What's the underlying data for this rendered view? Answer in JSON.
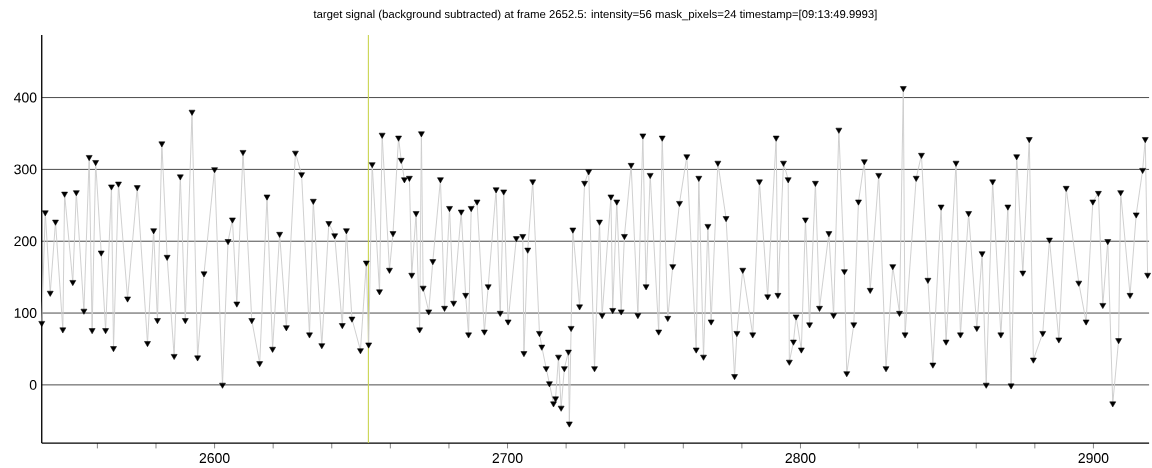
{
  "chart_data": {
    "type": "line",
    "title": "target signal (background subtracted) at frame 2652.5: intensity=56 mask_pixels=24 timestamp=[09:13:49.9993]",
    "xlim": [
      2541,
      2919
    ],
    "ylim": [
      -81,
      487
    ],
    "xticks": [
      {
        "value": 2560,
        "label": null
      },
      {
        "value": 2580,
        "label": null
      },
      2600,
      {
        "value": 2620,
        "label": null
      },
      {
        "value": 2640,
        "label": null
      },
      {
        "value": 2660,
        "label": null
      },
      {
        "value": 2680,
        "label": null
      },
      2700,
      {
        "value": 2720,
        "label": null
      },
      {
        "value": 2740,
        "label": null
      },
      {
        "value": 2760,
        "label": null
      },
      {
        "value": 2780,
        "label": null
      },
      2800,
      {
        "value": 2820,
        "label": null
      },
      {
        "value": 2840,
        "label": null
      },
      {
        "value": 2860,
        "label": null
      },
      {
        "value": 2880,
        "label": null
      },
      2900
    ],
    "yticks": [
      0,
      100,
      200,
      300,
      400
    ],
    "grid": "y",
    "marker": "triangle",
    "ref_lines": [
      {
        "axis": "x",
        "value": 2652.5,
        "color": "#c8d44a"
      }
    ],
    "series": [
      {
        "color": "#000000",
        "x": [
          2541,
          2542.2,
          2543.9,
          2545.7,
          2548.2,
          2548.8,
          2551.6,
          2552.8,
          2555.4,
          2557.2,
          2558.2,
          2559.4,
          2561.3,
          2562.8,
          2564.8,
          2565.5,
          2567.2,
          2570.3,
          2573.6,
          2577.1,
          2579.2,
          2580.5,
          2582.0,
          2583.8,
          2586.2,
          2588.3,
          2590.0,
          2592.3,
          2594.2,
          2596.4,
          2600.0,
          2602.7,
          2604.6,
          2606.1,
          2607.6,
          2609.7,
          2612.7,
          2615.4,
          2617.9,
          2619.8,
          2622.2,
          2624.5,
          2627.6,
          2629.7,
          2632.4,
          2633.7,
          2636.6,
          2639.0,
          2641.0,
          2643.6,
          2645.0,
          2646.9,
          2649.8,
          2651.8,
          2652.6,
          2653.8,
          2656.3,
          2657.2,
          2659.7,
          2660.9,
          2662.8,
          2663.7,
          2664.8,
          2666.5,
          2667.3,
          2668.8,
          2670.0,
          2670.6,
          2671.2,
          2673.1,
          2674.5,
          2677.1,
          2678.5,
          2680.2,
          2681.6,
          2684.2,
          2685.7,
          2686.7,
          2687.6,
          2689.6,
          2692.1,
          2693.4,
          2696.1,
          2697.5,
          2698.7,
          2700.2,
          2703.0,
          2705.2,
          2705.6,
          2706.9,
          2708.6,
          2710.9,
          2711.7,
          2713.2,
          2714.3,
          2715.7,
          2716.4,
          2717.4,
          2718.3,
          2719.4,
          2720.8,
          2721.1,
          2721.7,
          2722.3,
          2724.6,
          2726.3,
          2727.7,
          2729.7,
          2731.4,
          2732.3,
          2735.3,
          2735.9,
          2737.3,
          2738.8,
          2739.9,
          2742.2,
          2744.5,
          2746.2,
          2747.3,
          2748.7,
          2751.6,
          2752.8,
          2754.7,
          2756.4,
          2758.7,
          2761.2,
          2764.4,
          2765.3,
          2766.9,
          2768.4,
          2769.5,
          2771.8,
          2774.6,
          2777.5,
          2778.3,
          2780.3,
          2783.7,
          2786.0,
          2788.8,
          2791.7,
          2792.3,
          2794.2,
          2795.8,
          2796.2,
          2797.6,
          2798.5,
          2800.3,
          2801.7,
          2803.1,
          2805.1,
          2806.5,
          2809.7,
          2811.3,
          2813.1,
          2815.0,
          2815.8,
          2818.2,
          2819.8,
          2821.8,
          2823.8,
          2826.7,
          2829.2,
          2831.5,
          2833.8,
          2835.1,
          2835.7,
          2839.5,
          2841.3,
          2843.5,
          2845.2,
          2848.0,
          2849.7,
          2853.1,
          2854.6,
          2857.4,
          2860.2,
          2862.0,
          2863.4,
          2865.6,
          2868.4,
          2870.8,
          2871.9,
          2873.8,
          2875.9,
          2878.1,
          2879.5,
          2882.7,
          2885.0,
          2888.2,
          2890.7,
          2895.0,
          2897.5,
          2899.8,
          2901.7,
          2903.2,
          2904.9,
          2906.6,
          2908.6,
          2909.3,
          2912.5,
          2914.6,
          2916.8,
          2917.7,
          2918.5
        ],
        "values": [
          86,
          240,
          128,
          227,
          77,
          266,
          143,
          268,
          103,
          317,
          76,
          310,
          184,
          76,
          276,
          51,
          280,
          120,
          275,
          58,
          215,
          90,
          336,
          178,
          40,
          290,
          90,
          380,
          38,
          155,
          300,
          0,
          200,
          230,
          113,
          324,
          90,
          30,
          262,
          50,
          210,
          80,
          323,
          293,
          70,
          256,
          55,
          225,
          208,
          83,
          215,
          92,
          48,
          170,
          56,
          307,
          130,
          348,
          160,
          211,
          344,
          313,
          286,
          288,
          153,
          239,
          77,
          350,
          135,
          102,
          172,
          286,
          107,
          246,
          114,
          241,
          125,
          70,
          246,
          255,
          74,
          137,
          272,
          100,
          269,
          88,
          204,
          207,
          44,
          188,
          283,
          72,
          53,
          23,
          2,
          -26,
          -19,
          39,
          -32,
          23,
          46,
          -54,
          79,
          216,
          109,
          281,
          297,
          23,
          227,
          97,
          262,
          104,
          255,
          102,
          207,
          306,
          97,
          347,
          137,
          292,
          74,
          344,
          93,
          165,
          253,
          318,
          49,
          288,
          39,
          221,
          88,
          309,
          232,
          12,
          72,
          160,
          70,
          283,
          123,
          344,
          125,
          309,
          286,
          32,
          60,
          95,
          49,
          230,
          84,
          281,
          107,
          211,
          97,
          355,
          158,
          16,
          84,
          255,
          311,
          132,
          292,
          23,
          165,
          100,
          413,
          70,
          288,
          320,
          146,
          28,
          248,
          60,
          309,
          70,
          239,
          79,
          183,
          0,
          283,
          70,
          248,
          -1,
          318,
          156,
          342,
          35,
          72,
          202,
          63,
          274,
          142,
          88,
          255,
          267,
          111,
          200,
          -26,
          62,
          268,
          125,
          237,
          299,
          342,
          153
        ]
      }
    ]
  }
}
